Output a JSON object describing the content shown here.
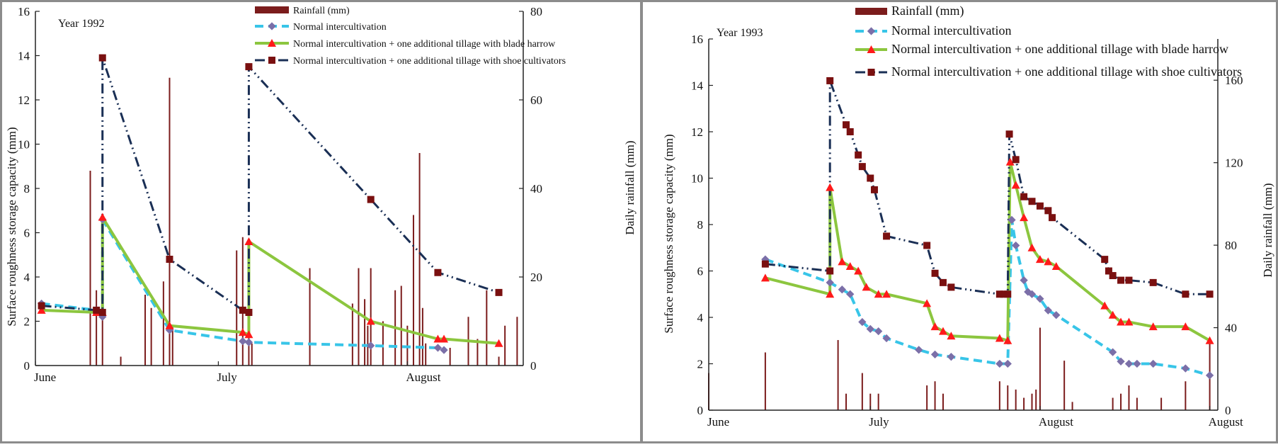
{
  "colors": {
    "rainfall": "#7b1c1c",
    "normal": "#38c5e8",
    "normal_marker": "#7b6fa8",
    "blade": "#8cc63f",
    "blade_marker": "#ff1a1a",
    "shoe": "#1a2f55",
    "shoe_marker": "#7a1010",
    "frame": "#8c8c8c",
    "axis": "#222222"
  },
  "chart_data": [
    {
      "type": "line",
      "title": "Year 1992",
      "ylabel": "Surface roughness storage capacity (mm)",
      "y2label": "Daily rainfall (mm)",
      "ylim": [
        0,
        16
      ],
      "yticks": [
        "0",
        "2",
        "4",
        "6",
        "8",
        "10",
        "12",
        "14",
        "16"
      ],
      "y2lim": [
        0,
        80
      ],
      "y2ticks": [
        "0",
        "20",
        "40",
        "60",
        "80"
      ],
      "xlim": [
        0,
        80
      ],
      "xticks": [
        {
          "label": "June",
          "x": 0
        },
        {
          "label": "July",
          "x": 30
        },
        {
          "label": "August",
          "x": 61
        }
      ],
      "legend": [
        {
          "key": "rainfall",
          "label": "Rainfall (mm)"
        },
        {
          "key": "normal",
          "label": "Normal intercultivation"
        },
        {
          "key": "blade",
          "label": "Normal intercultivation + one additional tillage with blade harrow"
        },
        {
          "key": "shoe",
          "label": "Normal intercultivation + one additional tillage with shoe cultivators"
        }
      ],
      "series": [
        {
          "key": "normal",
          "name": "Normal intercultivation",
          "x": [
            1,
            10,
            11,
            11,
            22,
            34,
            35,
            55,
            66,
            67
          ],
          "y": [
            2.8,
            2.5,
            2.2,
            6.6,
            1.6,
            1.1,
            1.05,
            0.9,
            0.8,
            0.7
          ]
        },
        {
          "key": "blade",
          "name": "Normal intercultivation + one additional tillage with blade harrow",
          "x": [
            1,
            10,
            11,
            11,
            22,
            34,
            35,
            35,
            55,
            66,
            67,
            76
          ],
          "y": [
            2.5,
            2.4,
            2.4,
            6.7,
            1.8,
            1.5,
            1.4,
            5.6,
            2.0,
            1.2,
            1.2,
            1.0
          ]
        },
        {
          "key": "shoe",
          "name": "Normal intercultivation + one additional tillage with shoe cultivators",
          "x": [
            1,
            10,
            11,
            11,
            22,
            34,
            35,
            35,
            55,
            66,
            76
          ],
          "y": [
            2.7,
            2.5,
            2.4,
            13.9,
            4.8,
            2.5,
            2.4,
            13.5,
            7.5,
            4.2,
            3.3
          ]
        }
      ],
      "rainfall": {
        "x": [
          9,
          10,
          11,
          14,
          18,
          19,
          21,
          22,
          22.5,
          33,
          34,
          35,
          35.5,
          45,
          52,
          53,
          54,
          54.5,
          55,
          57,
          59,
          60,
          61,
          62,
          63,
          63.5,
          64,
          68,
          71,
          72.5,
          74,
          76,
          77,
          79
        ],
        "values": [
          44,
          17,
          12,
          2,
          16,
          13,
          19,
          65,
          9,
          26,
          29,
          13,
          5,
          22,
          14,
          22,
          15,
          9,
          22,
          10,
          17,
          18,
          9,
          34,
          48,
          13,
          5,
          4,
          11,
          6,
          17,
          2,
          9,
          11
        ]
      }
    },
    {
      "type": "line",
      "title": "Year 1993",
      "ylabel": "Surface roughness storage capacity (mm)",
      "y2label": "Daily rainfall (mm)",
      "ylim": [
        0,
        16
      ],
      "yticks": [
        "0",
        "2",
        "4",
        "6",
        "8",
        "10",
        "12",
        "14",
        "16"
      ],
      "y2lim": [
        0,
        180
      ],
      "y2ticks": [
        "0",
        "40",
        "80",
        "120",
        "160"
      ],
      "xlim": [
        0,
        63
      ],
      "xticks": [
        {
          "label": "June",
          "x": 0
        },
        {
          "label": "July",
          "x": 20
        },
        {
          "label": "August",
          "x": 41
        },
        {
          "label": "August",
          "x": 62
        }
      ],
      "legend": [
        {
          "key": "rainfall",
          "label": "Rainfall (mm)"
        },
        {
          "key": "normal",
          "label": "Normal intercultivation"
        },
        {
          "key": "blade",
          "label": "Normal intercultivation + one additional tillage with blade harrow"
        },
        {
          "key": "shoe",
          "label": "Normal intercultivation + one additional tillage with shoe cultivators"
        }
      ],
      "series": [
        {
          "key": "normal",
          "name": "Normal intercultivation",
          "x": [
            7,
            15,
            16.5,
            17.5,
            19,
            20,
            21,
            22,
            26,
            28,
            30,
            36,
            37,
            37.5,
            38,
            39,
            39.5,
            40,
            41,
            42,
            43,
            50,
            51,
            52,
            53,
            55,
            59,
            62
          ],
          "y": [
            6.5,
            5.5,
            5.2,
            5.0,
            3.8,
            3.5,
            3.4,
            3.1,
            2.6,
            2.4,
            2.3,
            2.0,
            2.0,
            8.2,
            7.1,
            5.6,
            5.1,
            5.0,
            4.8,
            4.3,
            4.1,
            2.5,
            2.1,
            2.0,
            2.0,
            2.0,
            1.8,
            1.5
          ]
        },
        {
          "key": "blade",
          "name": "Normal intercultivation + one additional tillage with blade harrow",
          "x": [
            7,
            15,
            15,
            16.5,
            17.5,
            18.5,
            19.5,
            21,
            22,
            27,
            28,
            29,
            30,
            36,
            37,
            37.3,
            38,
            39,
            40,
            41,
            42,
            43,
            49,
            50,
            51,
            52,
            55,
            59,
            62
          ],
          "y": [
            5.7,
            5.0,
            9.6,
            6.4,
            6.2,
            6.0,
            5.3,
            5.0,
            5.0,
            4.6,
            3.6,
            3.4,
            3.2,
            3.1,
            3.0,
            10.7,
            9.7,
            8.3,
            7.0,
            6.5,
            6.4,
            6.2,
            4.5,
            4.1,
            3.8,
            3.8,
            3.6,
            3.6,
            3.0
          ]
        },
        {
          "key": "shoe",
          "name": "Normal intercultivation + one additional tillage with shoe cultivators",
          "x": [
            7,
            15,
            15,
            17,
            17.5,
            18.5,
            19,
            20,
            20.5,
            22,
            27,
            28,
            29,
            30,
            36,
            36.5,
            37,
            37.2,
            38,
            39,
            40,
            41,
            42,
            42.5,
            49,
            49.5,
            50,
            51,
            52,
            55,
            59,
            62
          ],
          "y": [
            6.3,
            6.0,
            14.2,
            12.3,
            12.0,
            11.0,
            10.5,
            10.0,
            9.5,
            7.5,
            7.1,
            5.9,
            5.5,
            5.3,
            5.0,
            5.0,
            5.0,
            11.9,
            10.8,
            9.2,
            9.0,
            8.8,
            8.6,
            8.3,
            6.5,
            6.0,
            5.8,
            5.6,
            5.6,
            5.5,
            5.0,
            5.0
          ]
        }
      ],
      "rainfall": {
        "x": [
          0,
          7,
          16,
          17,
          19,
          20,
          21,
          27,
          28,
          29,
          36,
          37,
          38,
          39,
          40,
          40.5,
          41,
          44,
          45,
          50,
          51,
          52,
          53,
          56,
          59,
          62
        ],
        "values": [
          18,
          28,
          34,
          8,
          18,
          8,
          8,
          12,
          14,
          8,
          14,
          12,
          10,
          6,
          8,
          10,
          40,
          24,
          4,
          6,
          8,
          12,
          6,
          6,
          14,
          34
        ]
      }
    }
  ]
}
